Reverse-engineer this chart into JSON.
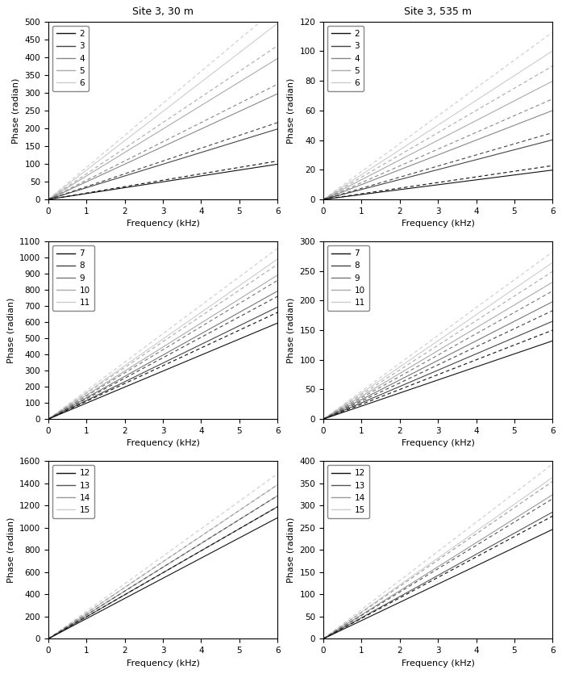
{
  "title_left": "Site 3, 30 m",
  "title_right": "Site 3, 535 m",
  "xlabel": "Frequency (kHz)",
  "ylabel": "Phase (radian)",
  "freq_max": 6,
  "subplots": [
    {
      "labels": [
        "2",
        "3",
        "4",
        "5",
        "6"
      ],
      "ylim": [
        0,
        500
      ],
      "yticks": [
        0,
        50,
        100,
        150,
        200,
        250,
        300,
        350,
        400,
        450,
        500
      ],
      "solid_slopes": [
        16.5,
        33.0,
        49.5,
        66.0,
        82.5
      ],
      "dashed_slopes": [
        18.0,
        36.0,
        54.0,
        72.0,
        90.0
      ],
      "colors": [
        "#111111",
        "#444444",
        "#888888",
        "#aaaaaa",
        "#cccccc"
      ]
    },
    {
      "labels": [
        "2",
        "3",
        "4",
        "5",
        "6"
      ],
      "ylim": [
        0,
        120
      ],
      "yticks": [
        0,
        20,
        40,
        60,
        80,
        100,
        120
      ],
      "solid_slopes": [
        3.3,
        6.7,
        10.0,
        13.3,
        16.7
      ],
      "dashed_slopes": [
        3.8,
        7.5,
        11.3,
        15.0,
        18.8
      ],
      "colors": [
        "#111111",
        "#444444",
        "#888888",
        "#aaaaaa",
        "#cccccc"
      ]
    },
    {
      "labels": [
        "7",
        "8",
        "9",
        "10",
        "11"
      ],
      "ylim": [
        0,
        1100
      ],
      "yticks": [
        0,
        100,
        200,
        300,
        400,
        500,
        600,
        700,
        800,
        900,
        1000,
        1100
      ],
      "solid_slopes": [
        99.0,
        115.5,
        132.0,
        148.5,
        165.0
      ],
      "dashed_slopes": [
        110.0,
        126.5,
        143.0,
        159.5,
        176.0
      ],
      "colors": [
        "#111111",
        "#444444",
        "#777777",
        "#aaaaaa",
        "#cccccc"
      ]
    },
    {
      "labels": [
        "7",
        "8",
        "9",
        "10",
        "11"
      ],
      "ylim": [
        0,
        300
      ],
      "yticks": [
        0,
        50,
        100,
        150,
        200,
        250,
        300
      ],
      "solid_slopes": [
        22.0,
        27.5,
        33.0,
        38.5,
        44.0
      ],
      "dashed_slopes": [
        25.0,
        30.5,
        36.0,
        41.5,
        47.0
      ],
      "colors": [
        "#111111",
        "#444444",
        "#777777",
        "#aaaaaa",
        "#cccccc"
      ]
    },
    {
      "labels": [
        "12",
        "13",
        "14",
        "15"
      ],
      "ylim": [
        0,
        1600
      ],
      "yticks": [
        0,
        200,
        400,
        600,
        800,
        1000,
        1200,
        1400,
        1600
      ],
      "solid_slopes": [
        181.5,
        198.0,
        214.5,
        231.0
      ],
      "dashed_slopes": [
        198.0,
        214.5,
        231.0,
        247.5
      ],
      "colors": [
        "#111111",
        "#555555",
        "#999999",
        "#cccccc"
      ]
    },
    {
      "labels": [
        "12",
        "13",
        "14",
        "15"
      ],
      "ylim": [
        0,
        400
      ],
      "yticks": [
        0,
        50,
        100,
        150,
        200,
        250,
        300,
        350,
        400
      ],
      "solid_slopes": [
        41.0,
        47.5,
        54.0,
        60.5
      ],
      "dashed_slopes": [
        46.0,
        52.5,
        59.0,
        65.5
      ],
      "colors": [
        "#111111",
        "#555555",
        "#999999",
        "#cccccc"
      ]
    }
  ]
}
